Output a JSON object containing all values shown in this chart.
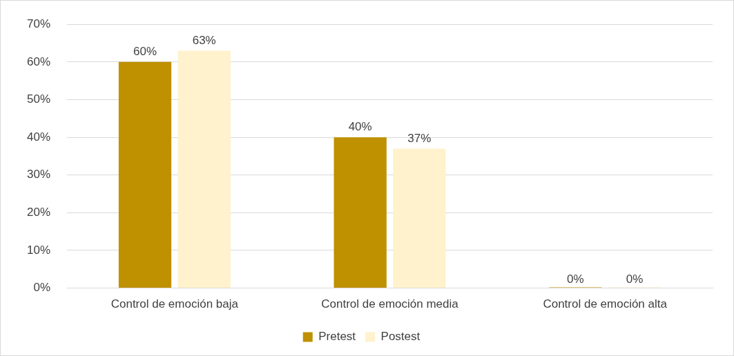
{
  "chart_data": {
    "type": "bar",
    "categories": [
      "Control de emoción baja",
      "Control de emoción media",
      "Control de emoción alta"
    ],
    "series": [
      {
        "name": "Pretest",
        "color": "#bf9000",
        "values": [
          60,
          40,
          0
        ],
        "value_labels": [
          "60%",
          "40%",
          "0%"
        ]
      },
      {
        "name": "Postest",
        "color": "#fff2cc",
        "values": [
          63,
          37,
          0
        ],
        "value_labels": [
          "63%",
          "37%",
          "0%"
        ]
      }
    ],
    "ylim": [
      0,
      70
    ],
    "yticks": [
      {
        "value": 0,
        "label": "0%"
      },
      {
        "value": 10,
        "label": "10%"
      },
      {
        "value": 20,
        "label": "20%"
      },
      {
        "value": 30,
        "label": "30%"
      },
      {
        "value": 40,
        "label": "40%"
      },
      {
        "value": 50,
        "label": "50%"
      },
      {
        "value": 60,
        "label": "60%"
      },
      {
        "value": 70,
        "label": "70%"
      }
    ],
    "grid": "y",
    "legend": "bottom"
  }
}
